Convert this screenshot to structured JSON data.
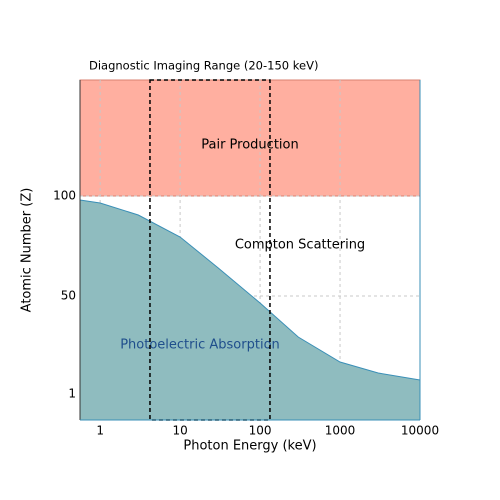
{
  "chart_data": {
    "type": "area",
    "title": "Diagnostic Imaging Range (20-150 keV)",
    "xlabel": "Photon Energy (keV)",
    "ylabel": "Atomic Number (Z)",
    "log_x": true,
    "grid": true,
    "xlim": [
      0.56,
      10000
    ],
    "ylim": [
      -12,
      158
    ],
    "xticks": [
      1,
      10,
      100,
      1000,
      10000
    ],
    "yticks": [
      1,
      50,
      100
    ],
    "x": [
      0.56,
      1,
      3,
      10,
      30,
      100,
      300,
      1000,
      3000,
      10000
    ],
    "series": [
      {
        "name": "Photoelectric Absorption",
        "color": "#8fbcbf",
        "line_color": "#3a8fb7",
        "label_color": "#1f4e8c",
        "values": [
          98,
          96.5,
          90.5,
          79.5,
          64,
          46.5,
          29.5,
          17,
          11.5,
          8
        ]
      }
    ],
    "pair_production": {
      "label": "Pair Production",
      "lower": 100,
      "color": "#ffafa0",
      "edge": "#d98070"
    },
    "compton_label": "Compton Scattering",
    "highlight_x": [
      4.2,
      133
    ]
  }
}
